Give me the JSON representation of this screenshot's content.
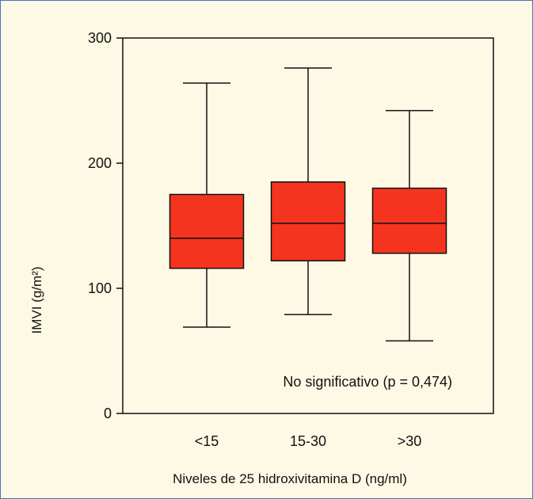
{
  "chart_data": {
    "type": "box",
    "title": "",
    "xlabel": "Niveles de 25 hidroxivitamina D (ng/ml)",
    "ylabel": "IMVI (g/m²)",
    "ylim": [
      0,
      300
    ],
    "yticks": [
      0,
      100,
      200,
      300
    ],
    "grid": false,
    "categories": [
      "<15",
      "15-30",
      ">30"
    ],
    "boxes": [
      {
        "category": "<15",
        "min": 69,
        "q1": 116,
        "median": 140,
        "q3": 175,
        "max": 264
      },
      {
        "category": "15-30",
        "min": 79,
        "q1": 122,
        "median": 152,
        "q3": 185,
        "max": 276
      },
      {
        "category": ">30",
        "min": 58,
        "q1": 128,
        "median": 152,
        "q3": 180,
        "max": 242
      }
    ],
    "annotation": "No significativo (p = 0,474)",
    "colors": {
      "box_fill": "#f5341f",
      "line": "#111111",
      "background": "#fdf9e4",
      "frame": "#3a78b8"
    }
  }
}
